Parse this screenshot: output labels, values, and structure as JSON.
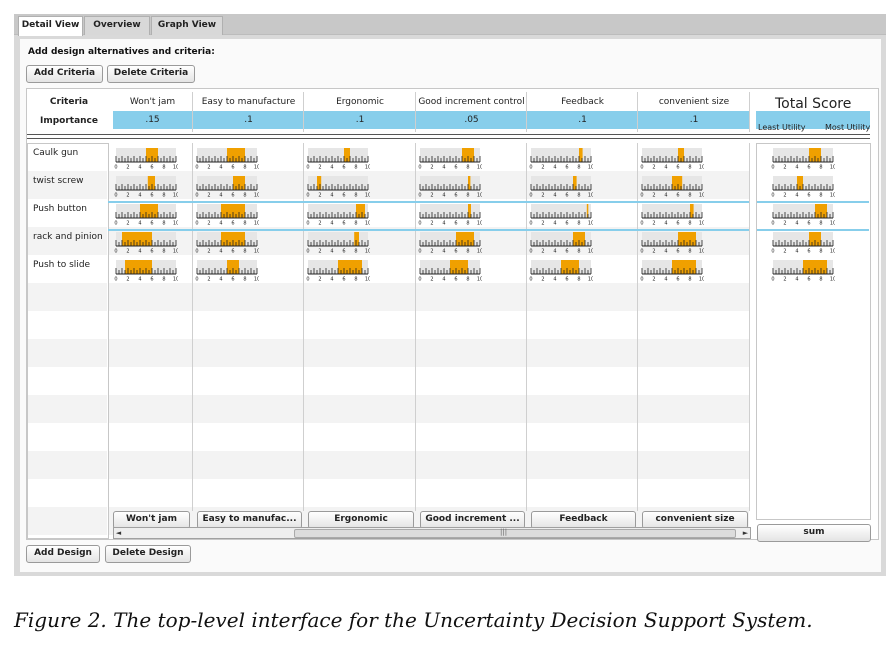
{
  "tabs": [
    "Detail View",
    "Overview",
    "Graph View"
  ],
  "section_title": "Add design alternatives and criteria:",
  "buttons": {
    "add_criteria": "Add Criteria",
    "delete_criteria": "Delete Criteria",
    "add_design": "Add Design",
    "delete_design": "Delete Design",
    "sum": "sum"
  },
  "header": {
    "criteria": "Criteria",
    "importance": "Importance"
  },
  "total": {
    "title": "Total Score",
    "least": "Least Utility",
    "most": "Most Utility"
  },
  "criteria": [
    {
      "name": "Won't jam",
      "importance": ".15",
      "footer": "Won't jam"
    },
    {
      "name": "Easy to manufacture",
      "importance": ".1",
      "footer": "Easy to manufac..."
    },
    {
      "name": "Ergonomic",
      "importance": ".1",
      "footer": "Ergonomic"
    },
    {
      "name": "Good increment control",
      "importance": ".05",
      "footer": "Good increment ..."
    },
    {
      "name": "Feedback",
      "importance": ".1",
      "footer": "Feedback"
    },
    {
      "name": "convenient size",
      "importance": ".1",
      "footer": "convenient size"
    }
  ],
  "designs": [
    "Caulk gun",
    "twist screw",
    "Push button",
    "rack and pinion",
    "Push to slide"
  ],
  "axis_ticks": [
    "0",
    "2",
    "4",
    "6",
    "8",
    "10"
  ],
  "scrollbar": {
    "left": "◄",
    "grip": "|||",
    "right": "►"
  },
  "colors": {
    "bar": "#f0a000",
    "importance": "#87ceeb",
    "separator": "#8fd0ee"
  },
  "ranges": [
    [
      [
        5,
        7
      ],
      [
        5,
        8
      ],
      [
        6,
        7
      ],
      [
        7,
        9
      ],
      [
        8,
        8.6
      ],
      [
        6,
        7
      ]
    ],
    [
      [
        5.3,
        6.5
      ],
      [
        6,
        8
      ],
      [
        1.5,
        2.2
      ],
      [
        8,
        8.4
      ],
      [
        7,
        7.6
      ],
      [
        5,
        6.7
      ]
    ],
    [
      [
        4,
        7
      ],
      [
        4,
        8
      ],
      [
        8,
        9.5
      ],
      [
        8,
        8.5
      ],
      [
        9.3,
        9.5
      ],
      [
        8,
        8.6
      ]
    ],
    [
      [
        1,
        6
      ],
      [
        4,
        8
      ],
      [
        7.7,
        8.5
      ],
      [
        6,
        9
      ],
      [
        7,
        9
      ],
      [
        6,
        9
      ]
    ],
    [
      [
        1.5,
        6
      ],
      [
        5,
        7
      ],
      [
        5,
        9
      ],
      [
        5,
        8
      ],
      [
        5,
        8
      ],
      [
        5,
        9
      ]
    ]
  ],
  "total_ranges": [
    [
      6,
      8
    ],
    [
      4,
      5
    ],
    [
      7,
      9
    ],
    [
      6,
      8
    ],
    [
      5,
      9
    ]
  ],
  "caption": "Figure 2. The top-level interface for the Uncertainty Decision Support System."
}
